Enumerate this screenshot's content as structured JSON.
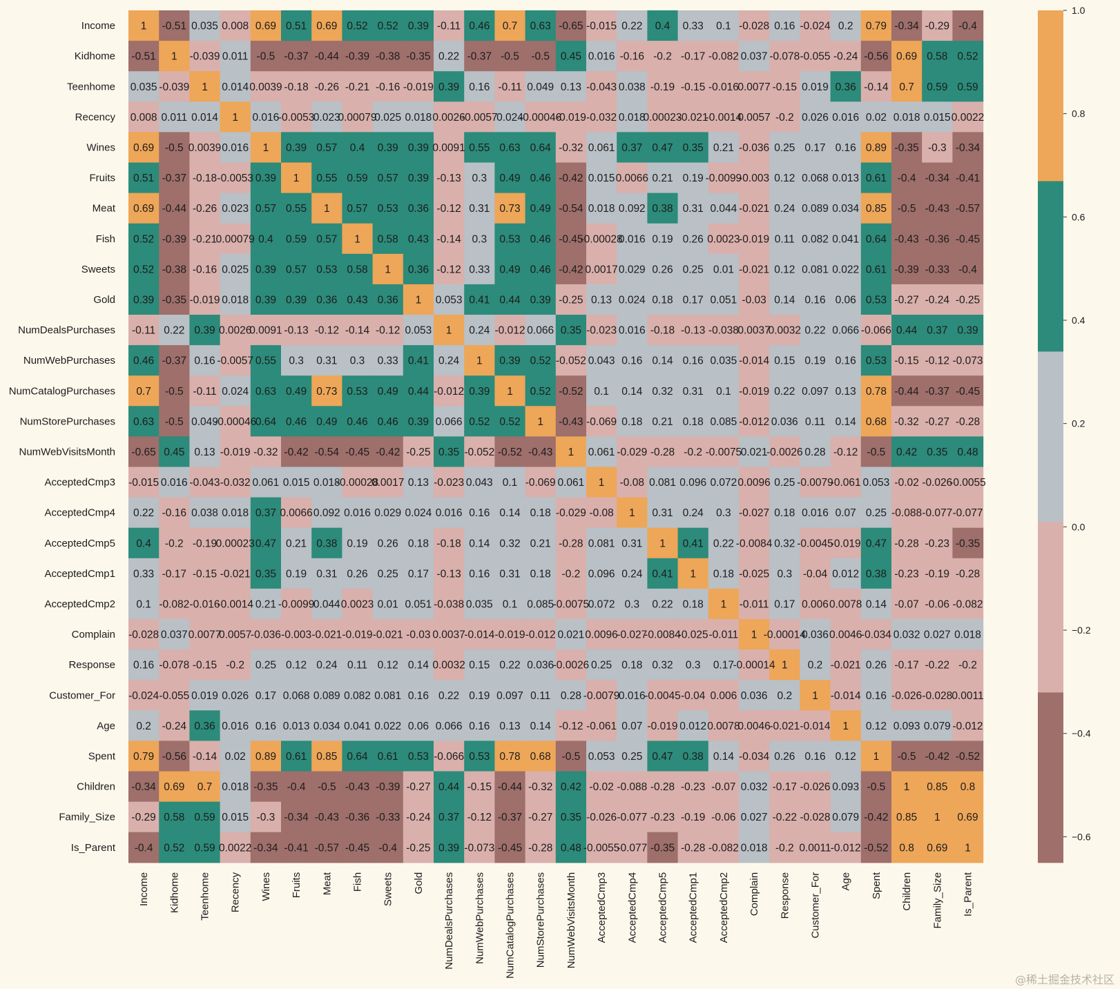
{
  "chart_data": {
    "type": "heatmap",
    "labels": [
      "Income",
      "Kidhome",
      "Teenhome",
      "Recency",
      "Wines",
      "Fruits",
      "Meat",
      "Fish",
      "Sweets",
      "Gold",
      "NumDealsPurchases",
      "NumWebPurchases",
      "NumCatalogPurchases",
      "NumStorePurchases",
      "NumWebVisitsMonth",
      "AcceptedCmp3",
      "AcceptedCmp4",
      "AcceptedCmp5",
      "AcceptedCmp1",
      "AcceptedCmp2",
      "Complain",
      "Response",
      "Customer_For",
      "Age",
      "Spent",
      "Children",
      "Family_Size",
      "Is_Parent"
    ],
    "annotations": [
      [
        "1",
        "-0.51",
        "0.035",
        "0.008",
        "0.69",
        "0.51",
        "0.69",
        "0.52",
        "0.52",
        "0.39",
        "-0.11",
        "0.46",
        "0.7",
        "0.63",
        "-0.65",
        "-0.015",
        "0.22",
        "0.4",
        "0.33",
        "0.1",
        "-0.028",
        "0.16",
        "-0.024",
        "0.2",
        "0.79",
        "-0.34",
        "-0.29",
        "-0.4"
      ],
      [
        "-0.51",
        "1",
        "-0.039",
        "0.011",
        "-0.5",
        "-0.37",
        "-0.44",
        "-0.39",
        "-0.38",
        "-0.35",
        "0.22",
        "-0.37",
        "-0.5",
        "-0.5",
        "0.45",
        "0.016",
        "-0.16",
        "-0.2",
        "-0.17",
        "-0.082",
        "0.037",
        "-0.078",
        "-0.055",
        "-0.24",
        "-0.56",
        "0.69",
        "0.58",
        "0.52"
      ],
      [
        "0.035",
        "-0.039",
        "1",
        "0.014",
        "0.0039",
        "-0.18",
        "-0.26",
        "-0.21",
        "-0.16",
        "-0.019",
        "0.39",
        "0.16",
        "-0.11",
        "0.049",
        "0.13",
        "-0.043",
        "0.038",
        "-0.19",
        "-0.15",
        "-0.016",
        "0.0077",
        "-0.15",
        "0.019",
        "0.36",
        "-0.14",
        "0.7",
        "0.59",
        "0.59"
      ],
      [
        "0.008",
        "0.011",
        "0.014",
        "1",
        "0.016",
        "-0.0053",
        "0.023",
        "0.00079",
        "0.025",
        "0.018",
        "0.0026",
        "-0.0057",
        "0.024",
        "-0.00046",
        "-0.019",
        "-0.032",
        "0.018",
        "0.00023",
        "-0.021",
        "-0.0014",
        "0.0057",
        "-0.2",
        "0.026",
        "0.016",
        "0.02",
        "0.018",
        "0.015",
        "0.0022"
      ],
      [
        "0.69",
        "-0.5",
        "0.0039",
        "0.016",
        "1",
        "0.39",
        "0.57",
        "0.4",
        "0.39",
        "0.39",
        "0.0091",
        "0.55",
        "0.63",
        "0.64",
        "-0.32",
        "0.061",
        "0.37",
        "0.47",
        "0.35",
        "0.21",
        "-0.036",
        "0.25",
        "0.17",
        "0.16",
        "0.89",
        "-0.35",
        "-0.3",
        "-0.34"
      ],
      [
        "0.51",
        "-0.37",
        "-0.18",
        "-0.0053",
        "0.39",
        "1",
        "0.55",
        "0.59",
        "0.57",
        "0.39",
        "-0.13",
        "0.3",
        "0.49",
        "0.46",
        "-0.42",
        "0.015",
        "0.0066",
        "0.21",
        "0.19",
        "-0.0099",
        "-0.003",
        "0.12",
        "0.068",
        "0.013",
        "0.61",
        "-0.4",
        "-0.34",
        "-0.41"
      ],
      [
        "0.69",
        "-0.44",
        "-0.26",
        "0.023",
        "0.57",
        "0.55",
        "1",
        "0.57",
        "0.53",
        "0.36",
        "-0.12",
        "0.31",
        "0.73",
        "0.49",
        "-0.54",
        "0.018",
        "0.092",
        "0.38",
        "0.31",
        "0.044",
        "-0.021",
        "0.24",
        "0.089",
        "0.034",
        "0.85",
        "-0.5",
        "-0.43",
        "-0.57"
      ],
      [
        "0.52",
        "-0.39",
        "-0.21",
        "0.00079",
        "0.4",
        "0.59",
        "0.57",
        "1",
        "0.58",
        "0.43",
        "-0.14",
        "0.3",
        "0.53",
        "0.46",
        "-0.45",
        "-0.00028",
        "0.016",
        "0.19",
        "0.26",
        "0.0023",
        "-0.019",
        "0.11",
        "0.082",
        "0.041",
        "0.64",
        "-0.43",
        "-0.36",
        "-0.45"
      ],
      [
        "0.52",
        "-0.38",
        "-0.16",
        "0.025",
        "0.39",
        "0.57",
        "0.53",
        "0.58",
        "1",
        "0.36",
        "-0.12",
        "0.33",
        "0.49",
        "0.46",
        "-0.42",
        "0.0017",
        "0.029",
        "0.26",
        "0.25",
        "0.01",
        "-0.021",
        "0.12",
        "0.081",
        "0.022",
        "0.61",
        "-0.39",
        "-0.33",
        "-0.4"
      ],
      [
        "0.39",
        "-0.35",
        "-0.019",
        "0.018",
        "0.39",
        "0.39",
        "0.36",
        "0.43",
        "0.36",
        "1",
        "0.053",
        "0.41",
        "0.44",
        "0.39",
        "-0.25",
        "0.13",
        "0.024",
        "0.18",
        "0.17",
        "0.051",
        "-0.03",
        "0.14",
        "0.16",
        "0.06",
        "0.53",
        "-0.27",
        "-0.24",
        "-0.25"
      ],
      [
        "-0.11",
        "0.22",
        "0.39",
        "0.0026",
        "0.0091",
        "-0.13",
        "-0.12",
        "-0.14",
        "-0.12",
        "0.053",
        "1",
        "0.24",
        "-0.012",
        "0.066",
        "0.35",
        "-0.023",
        "0.016",
        "-0.18",
        "-0.13",
        "-0.038",
        "0.0037",
        "0.0032",
        "0.22",
        "0.066",
        "-0.066",
        "0.44",
        "0.37",
        "0.39"
      ],
      [
        "0.46",
        "-0.37",
        "0.16",
        "-0.0057",
        "0.55",
        "0.3",
        "0.31",
        "0.3",
        "0.33",
        "0.41",
        "0.24",
        "1",
        "0.39",
        "0.52",
        "-0.052",
        "0.043",
        "0.16",
        "0.14",
        "0.16",
        "0.035",
        "-0.014",
        "0.15",
        "0.19",
        "0.16",
        "0.53",
        "-0.15",
        "-0.12",
        "-0.073"
      ],
      [
        "0.7",
        "-0.5",
        "-0.11",
        "0.024",
        "0.63",
        "0.49",
        "0.73",
        "0.53",
        "0.49",
        "0.44",
        "-0.012",
        "0.39",
        "1",
        "0.52",
        "-0.52",
        "0.1",
        "0.14",
        "0.32",
        "0.31",
        "0.1",
        "-0.019",
        "0.22",
        "0.097",
        "0.13",
        "0.78",
        "-0.44",
        "-0.37",
        "-0.45"
      ],
      [
        "0.63",
        "-0.5",
        "0.049",
        "-0.00046",
        "0.64",
        "0.46",
        "0.49",
        "0.46",
        "0.46",
        "0.39",
        "0.066",
        "0.52",
        "0.52",
        "1",
        "-0.43",
        "-0.069",
        "0.18",
        "0.21",
        "0.18",
        "0.085",
        "-0.012",
        "0.036",
        "0.11",
        "0.14",
        "0.68",
        "-0.32",
        "-0.27",
        "-0.28"
      ],
      [
        "-0.65",
        "0.45",
        "0.13",
        "-0.019",
        "-0.32",
        "-0.42",
        "-0.54",
        "-0.45",
        "-0.42",
        "-0.25",
        "0.35",
        "-0.052",
        "-0.52",
        "-0.43",
        "1",
        "0.061",
        "-0.029",
        "-0.28",
        "-0.2",
        "-0.0075",
        "0.021",
        "-0.0026",
        "0.28",
        "-0.12",
        "-0.5",
        "0.42",
        "0.35",
        "0.48"
      ],
      [
        "-0.015",
        "0.016",
        "-0.043",
        "-0.032",
        "0.061",
        "0.015",
        "0.018",
        "-0.00028",
        "0.0017",
        "0.13",
        "-0.023",
        "0.043",
        "0.1",
        "-0.069",
        "0.061",
        "1",
        "-0.08",
        "0.081",
        "0.096",
        "0.072",
        "0.0096",
        "0.25",
        "-0.0079",
        "-0.061",
        "0.053",
        "-0.02",
        "-0.026",
        "-0.0055"
      ],
      [
        "0.22",
        "-0.16",
        "0.038",
        "0.018",
        "0.37",
        "0.0066",
        "0.092",
        "0.016",
        "0.029",
        "0.024",
        "0.016",
        "0.16",
        "0.14",
        "0.18",
        "-0.029",
        "-0.08",
        "1",
        "0.31",
        "0.24",
        "0.3",
        "-0.027",
        "0.18",
        "0.016",
        "0.07",
        "0.25",
        "-0.088",
        "-0.077",
        "-0.077"
      ],
      [
        "0.4",
        "-0.2",
        "-0.19",
        "0.00023",
        "0.47",
        "0.21",
        "0.38",
        "0.19",
        "0.26",
        "0.18",
        "-0.18",
        "0.14",
        "0.32",
        "0.21",
        "-0.28",
        "0.081",
        "0.31",
        "1",
        "0.41",
        "0.22",
        "-0.0084",
        "0.32",
        "-0.0045",
        "-0.019",
        "0.47",
        "-0.28",
        "-0.23",
        "-0.35"
      ],
      [
        "0.33",
        "-0.17",
        "-0.15",
        "-0.021",
        "0.35",
        "0.19",
        "0.31",
        "0.26",
        "0.25",
        "0.17",
        "-0.13",
        "0.16",
        "0.31",
        "0.18",
        "-0.2",
        "0.096",
        "0.24",
        "0.41",
        "1",
        "0.18",
        "-0.025",
        "0.3",
        "-0.04",
        "0.012",
        "0.38",
        "-0.23",
        "-0.19",
        "-0.28"
      ],
      [
        "0.1",
        "-0.082",
        "-0.016",
        "-0.0014",
        "0.21",
        "-0.0099",
        "0.044",
        "0.0023",
        "0.01",
        "0.051",
        "-0.038",
        "0.035",
        "0.1",
        "0.085",
        "-0.0075",
        "0.072",
        "0.3",
        "0.22",
        "0.18",
        "1",
        "-0.011",
        "0.17",
        "0.006",
        "0.0078",
        "0.14",
        "-0.07",
        "-0.06",
        "-0.082"
      ],
      [
        "-0.028",
        "0.037",
        "0.0077",
        "0.0057",
        "-0.036",
        "-0.003",
        "-0.021",
        "-0.019",
        "-0.021",
        "-0.03",
        "0.0037",
        "-0.014",
        "-0.019",
        "-0.012",
        "0.021",
        "0.0096",
        "-0.027",
        "-0.0084",
        "-0.025",
        "-0.011",
        "1",
        "-0.00014",
        "0.036",
        "0.0046",
        "-0.034",
        "0.032",
        "0.027",
        "0.018"
      ],
      [
        "0.16",
        "-0.078",
        "-0.15",
        "-0.2",
        "0.25",
        "0.12",
        "0.24",
        "0.11",
        "0.12",
        "0.14",
        "0.0032",
        "0.15",
        "0.22",
        "0.036",
        "-0.0026",
        "0.25",
        "0.18",
        "0.32",
        "0.3",
        "0.17",
        "-0.00014",
        "1",
        "0.2",
        "-0.021",
        "0.26",
        "-0.17",
        "-0.22",
        "-0.2"
      ],
      [
        "-0.024",
        "-0.055",
        "0.019",
        "0.026",
        "0.17",
        "0.068",
        "0.089",
        "0.082",
        "0.081",
        "0.16",
        "0.22",
        "0.19",
        "0.097",
        "0.11",
        "0.28",
        "-0.0079",
        "0.016",
        "-0.0045",
        "-0.04",
        "0.006",
        "0.036",
        "0.2",
        "1",
        "-0.014",
        "0.16",
        "-0.026",
        "-0.028",
        "0.0011"
      ],
      [
        "0.2",
        "-0.24",
        "0.36",
        "0.016",
        "0.16",
        "0.013",
        "0.034",
        "0.041",
        "0.022",
        "0.06",
        "0.066",
        "0.16",
        "0.13",
        "0.14",
        "-0.12",
        "-0.061",
        "0.07",
        "-0.019",
        "0.012",
        "0.0078",
        "0.0046",
        "-0.021",
        "-0.014",
        "1",
        "0.12",
        "0.093",
        "0.079",
        "-0.012"
      ],
      [
        "0.79",
        "-0.56",
        "-0.14",
        "0.02",
        "0.89",
        "0.61",
        "0.85",
        "0.64",
        "0.61",
        "0.53",
        "-0.066",
        "0.53",
        "0.78",
        "0.68",
        "-0.5",
        "0.053",
        "0.25",
        "0.47",
        "0.38",
        "0.14",
        "-0.034",
        "0.26",
        "0.16",
        "0.12",
        "1",
        "-0.5",
        "-0.42",
        "-0.52"
      ],
      [
        "-0.34",
        "0.69",
        "0.7",
        "0.018",
        "-0.35",
        "-0.4",
        "-0.5",
        "-0.43",
        "-0.39",
        "-0.27",
        "0.44",
        "-0.15",
        "-0.44",
        "-0.32",
        "0.42",
        "-0.02",
        "-0.088",
        "-0.28",
        "-0.23",
        "-0.07",
        "0.032",
        "-0.17",
        "-0.026",
        "0.093",
        "-0.5",
        "1",
        "0.85",
        "0.8"
      ],
      [
        "-0.29",
        "0.58",
        "0.59",
        "0.015",
        "-0.3",
        "-0.34",
        "-0.43",
        "-0.36",
        "-0.33",
        "-0.24",
        "0.37",
        "-0.12",
        "-0.37",
        "-0.27",
        "0.35",
        "-0.026",
        "-0.077",
        "-0.23",
        "-0.19",
        "-0.06",
        "0.027",
        "-0.22",
        "-0.028",
        "0.079",
        "-0.42",
        "0.85",
        "1",
        "0.69"
      ],
      [
        "-0.4",
        "0.52",
        "0.59",
        "0.0022",
        "-0.34",
        "-0.41",
        "-0.57",
        "-0.45",
        "-0.4",
        "-0.25",
        "0.39",
        "-0.073",
        "-0.45",
        "-0.28",
        "0.48",
        "-0.0055",
        "-0.077",
        "-0.35",
        "-0.28",
        "-0.082",
        "0.018",
        "-0.2",
        "0.0011",
        "-0.012",
        "-0.52",
        "0.8",
        "0.69",
        "1"
      ]
    ],
    "colorbar": {
      "vmin": -0.65,
      "vmax": 1.0,
      "ticks": [
        1.0,
        0.8,
        0.6,
        0.4,
        0.2,
        0.0,
        -0.2,
        -0.4,
        -0.6
      ],
      "tick_labels": [
        "1.0",
        "0.8",
        "0.6",
        "0.4",
        "0.2",
        "0.0",
        "−0.2",
        "−0.4",
        "−0.6"
      ],
      "colors": [
        "#9e6f6b",
        "#d9b0ac",
        "#b9c0c6",
        "#2c8b7a",
        "#eea658"
      ]
    },
    "background": "#fdf8ec"
  },
  "watermark": "@稀土掘金技术社区"
}
